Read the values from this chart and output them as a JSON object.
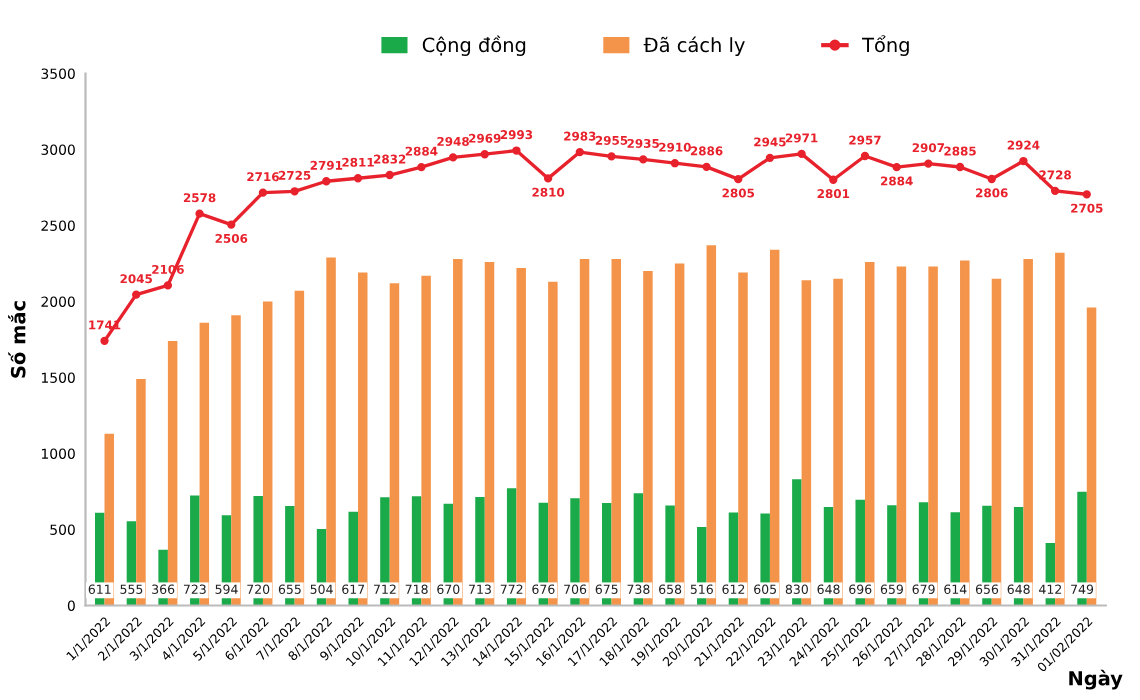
{
  "chart_data": {
    "type": "bar",
    "xlabel": "Ngày",
    "ylabel": "Số mắc",
    "categories": [
      "1/1/2022",
      "2/1/2022",
      "3/1/2022",
      "4/1/2022",
      "5/1/2022",
      "6/1/2022",
      "7/1/2022",
      "8/1/2022",
      "9/1/2022",
      "10/1/2022",
      "11/1/2022",
      "12/1/2022",
      "13/1/2022",
      "14/1/2022",
      "15/1/2022",
      "16/1/2022",
      "17/1/2022",
      "18/1/2022",
      "19/1/2022",
      "20/1/2022",
      "21/1/2022",
      "22/1/2022",
      "23/1/2022",
      "24/1/2022",
      "25/1/2022",
      "26/1/2022",
      "27/1/2022",
      "28/1/2022",
      "29/1/2022",
      "30/1/2022",
      "31/1/2022",
      "01/02/2022"
    ],
    "series": [
      {
        "name": "Cộng đồng",
        "color": "#1aaa4a",
        "values": [
          611,
          555,
          366,
          723,
          594,
          720,
          655,
          504,
          617,
          712,
          718,
          670,
          713,
          772,
          676,
          706,
          675,
          738,
          658,
          516,
          612,
          605,
          830,
          648,
          696,
          659,
          679,
          614,
          656,
          648,
          412,
          749
        ],
        "value_labels": [
          "611",
          "555",
          "366",
          "723",
          "594",
          "720",
          "655",
          "504",
          "617",
          "712",
          "718",
          "670",
          "713",
          "772",
          "676",
          "706",
          "675",
          "738",
          "658",
          "516",
          "612",
          "605",
          "830",
          "648",
          "696",
          "659",
          "679",
          "614",
          "656",
          "648",
          "412",
          "749"
        ]
      },
      {
        "name": "Đã cách ly",
        "color": "#f4944a",
        "values": [
          1130,
          1490,
          1740,
          1860,
          1910,
          2000,
          2070,
          2290,
          2190,
          2120,
          2170,
          2280,
          2260,
          2220,
          2130,
          2280,
          2280,
          2200,
          2250,
          2370,
          2190,
          2340,
          2140,
          2150,
          2260,
          2230,
          2230,
          2270,
          2150,
          2280,
          2320,
          1960
        ]
      },
      {
        "name": "Tổng",
        "type": "line",
        "color": "#e8222c",
        "marker": "circle",
        "values": [
          1741,
          2045,
          2106,
          2578,
          2506,
          2716,
          2725,
          2791,
          2811,
          2832,
          2884,
          2948,
          2969,
          2993,
          2810,
          2983,
          2955,
          2935,
          2910,
          2886,
          2805,
          2945,
          2971,
          2801,
          2957,
          2884,
          2907,
          2885,
          2806,
          2924,
          2728,
          2705
        ],
        "value_labels": [
          "1741",
          "2045",
          "2106",
          "2578",
          "2506",
          "2716",
          "2725",
          "2791",
          "2811",
          "2832",
          "2884",
          "2948",
          "2969",
          "2993",
          "2810",
          "2983",
          "2955",
          "2935",
          "2910",
          "2886",
          "2805",
          "2945",
          "2971",
          "2801",
          "2957",
          "2884",
          "2907",
          "2885",
          "2806",
          "2924",
          "2728",
          "2705"
        ]
      }
    ],
    "ylim": [
      0,
      3500
    ],
    "yticks": [
      0,
      500,
      1000,
      1500,
      2000,
      2500,
      3000,
      3500
    ],
    "grid": false,
    "legend": "top"
  }
}
